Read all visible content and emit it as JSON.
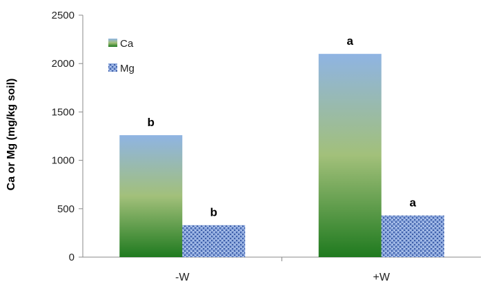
{
  "chart_data": {
    "type": "bar",
    "title": "",
    "xlabel": "",
    "ylabel": "Ca or Mg (mg/kg soil)",
    "categories": [
      "-W",
      "+W"
    ],
    "series": [
      {
        "name": "Ca",
        "values": [
          1260,
          2100
        ],
        "labels": [
          "b",
          "a"
        ],
        "fill": "gradient-green"
      },
      {
        "name": "Mg",
        "values": [
          330,
          430
        ],
        "labels": [
          "b",
          "a"
        ],
        "fill": "pattern-blue"
      }
    ],
    "ylim": [
      0,
      2500
    ],
    "yticks": [
      0,
      500,
      1000,
      1500,
      2000,
      2500
    ],
    "grid": false,
    "legend_position": "top-left"
  },
  "colors": {
    "ca_top": "#8fb4e3",
    "ca_mid": "#9fc07a",
    "ca_bottom": "#1f7a1f",
    "mg_base": "#7f9fd6",
    "mg_dot": "#4466aa",
    "axis": "#888888"
  }
}
